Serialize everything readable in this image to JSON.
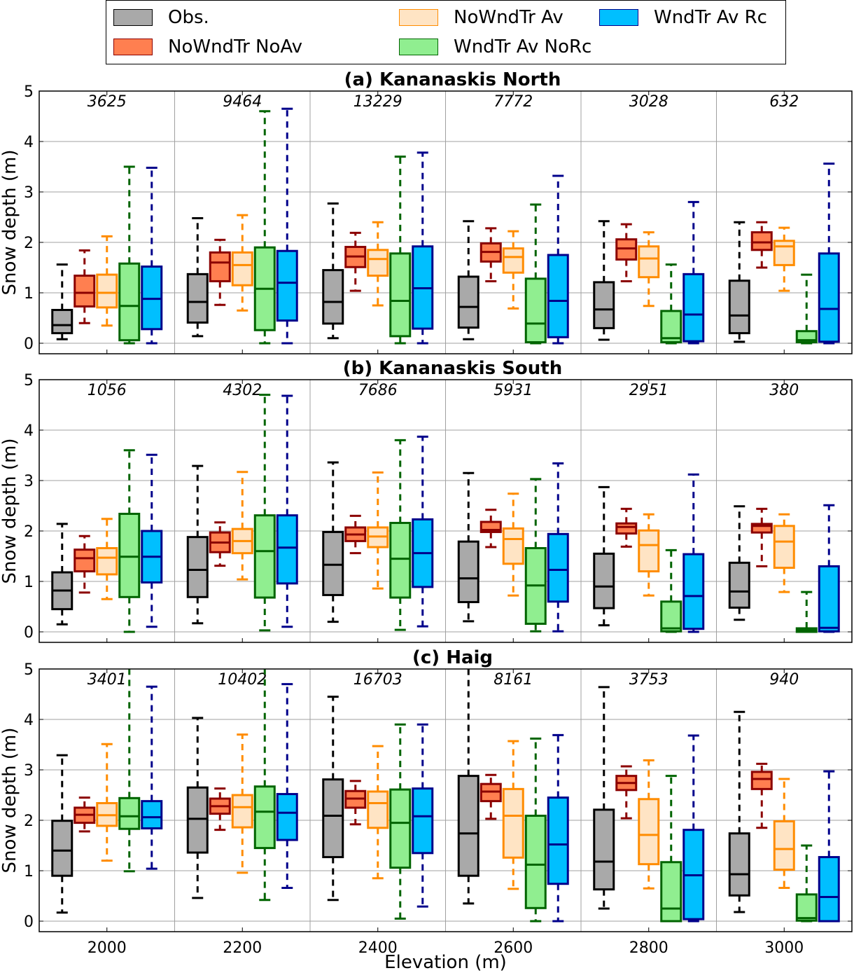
{
  "chart_data": {
    "type": "boxplot",
    "xlabel": "Elevation (m)",
    "ylabel": "Snow depth (m)",
    "ylim": [
      0,
      5
    ],
    "yticks": [
      0,
      1,
      2,
      3,
      4,
      5
    ],
    "categories": [
      "2000",
      "2200",
      "2400",
      "2600",
      "2800",
      "3000"
    ],
    "grid": true,
    "legend_position": "top-center",
    "series": [
      {
        "name": "Obs.",
        "fill": "#a9a9a9",
        "edge": "#000000"
      },
      {
        "name": "NoWndTr NoAv",
        "fill": "#ff7f50",
        "edge": "#8b0000"
      },
      {
        "name": "NoWndTr Av",
        "fill": "#ffe4c4",
        "edge": "#ff8c00"
      },
      {
        "name": "WndTr Av NoRc",
        "fill": "#90ee90",
        "edge": "#006400"
      },
      {
        "name": "WndTr Av Rc",
        "fill": "#00bfff",
        "edge": "#00008b"
      }
    ],
    "legend_order": [
      0,
      2,
      4,
      1,
      3
    ],
    "panels": [
      {
        "title": "(a)  Kananaskis North",
        "counts": [
          "3625",
          "9464",
          "13229",
          "7772",
          "3028",
          "632"
        ],
        "boxes": [
          [
            [
              0.08,
              0.2,
              0.36,
              0.66,
              1.56
            ],
            [
              0.4,
              0.73,
              1.0,
              1.34,
              1.84
            ],
            [
              0.35,
              0.71,
              1.0,
              1.36,
              2.12
            ],
            [
              0.0,
              0.06,
              0.74,
              1.58,
              3.5
            ],
            [
              0.0,
              0.28,
              0.88,
              1.52,
              3.48
            ]
          ],
          [
            [
              0.14,
              0.41,
              0.82,
              1.37,
              2.48
            ],
            [
              0.76,
              1.23,
              1.6,
              1.8,
              2.05
            ],
            [
              0.65,
              1.15,
              1.55,
              1.8,
              2.54
            ],
            [
              0.0,
              0.26,
              1.08,
              1.9,
              4.6
            ],
            [
              0.0,
              0.45,
              1.2,
              1.83,
              4.65
            ]
          ],
          [
            [
              0.1,
              0.39,
              0.82,
              1.45,
              2.77
            ],
            [
              1.04,
              1.51,
              1.72,
              1.91,
              2.19
            ],
            [
              0.75,
              1.34,
              1.67,
              1.85,
              2.4
            ],
            [
              0.0,
              0.14,
              0.84,
              1.78,
              3.7
            ],
            [
              0.0,
              0.29,
              1.09,
              1.92,
              3.78
            ]
          ],
          [
            [
              0.08,
              0.31,
              0.72,
              1.32,
              2.42
            ],
            [
              1.23,
              1.62,
              1.81,
              1.98,
              2.28
            ],
            [
              0.69,
              1.4,
              1.71,
              1.88,
              2.22
            ],
            [
              0.0,
              0.02,
              0.39,
              1.28,
              2.75
            ],
            [
              0.0,
              0.12,
              0.84,
              1.75,
              3.32
            ]
          ],
          [
            [
              0.07,
              0.3,
              0.67,
              1.21,
              2.42
            ],
            [
              1.23,
              1.66,
              1.88,
              2.06,
              2.36
            ],
            [
              0.74,
              1.31,
              1.68,
              1.92,
              2.2
            ],
            [
              0.0,
              0.02,
              0.1,
              0.64,
              1.56
            ],
            [
              0.0,
              0.04,
              0.57,
              1.37,
              2.8
            ]
          ],
          [
            [
              0.03,
              0.2,
              0.55,
              1.24,
              2.4
            ],
            [
              1.5,
              1.85,
              2.0,
              2.2,
              2.4
            ],
            [
              1.04,
              1.55,
              1.92,
              2.03,
              2.29
            ],
            [
              0.0,
              0.02,
              0.06,
              0.24,
              1.36
            ],
            [
              0.0,
              0.03,
              0.68,
              1.78,
              3.56
            ]
          ]
        ]
      },
      {
        "title": "(b) Kananaskis South",
        "counts": [
          "1056",
          "4302",
          "7686",
          "5931",
          "2951",
          "380"
        ],
        "boxes": [
          [
            [
              0.15,
              0.45,
              0.82,
              1.18,
              2.14
            ],
            [
              0.78,
              1.2,
              1.46,
              1.63,
              1.9
            ],
            [
              0.65,
              1.14,
              1.47,
              1.66,
              2.24
            ],
            [
              0.0,
              0.69,
              1.49,
              2.34,
              3.6
            ],
            [
              0.1,
              0.98,
              1.49,
              2.0,
              3.51
            ]
          ],
          [
            [
              0.17,
              0.69,
              1.23,
              1.88,
              3.29
            ],
            [
              1.31,
              1.58,
              1.77,
              1.97,
              2.17
            ],
            [
              1.04,
              1.56,
              1.8,
              2.04,
              3.17
            ],
            [
              0.03,
              0.68,
              1.6,
              2.31,
              4.7
            ],
            [
              0.1,
              0.96,
              1.67,
              2.31,
              4.68
            ]
          ],
          [
            [
              0.2,
              0.73,
              1.33,
              1.98,
              3.36
            ],
            [
              1.56,
              1.8,
              1.93,
              2.07,
              2.3
            ],
            [
              0.86,
              1.68,
              1.89,
              2.07,
              3.16
            ],
            [
              0.04,
              0.68,
              1.45,
              2.16,
              3.8
            ],
            [
              0.11,
              0.89,
              1.56,
              2.23,
              3.87
            ]
          ],
          [
            [
              0.21,
              0.59,
              1.06,
              1.79,
              3.15
            ],
            [
              1.68,
              1.98,
              2.02,
              2.18,
              2.42
            ],
            [
              0.72,
              1.35,
              1.84,
              2.05,
              2.74
            ],
            [
              0.01,
              0.16,
              0.92,
              1.66,
              3.03
            ],
            [
              0.01,
              0.6,
              1.23,
              1.94,
              3.34
            ]
          ],
          [
            [
              0.13,
              0.47,
              0.9,
              1.55,
              2.87
            ],
            [
              1.69,
              1.95,
              2.08,
              2.15,
              2.44
            ],
            [
              0.72,
              1.2,
              1.72,
              2.01,
              2.33
            ],
            [
              0.0,
              0.01,
              0.07,
              0.6,
              1.62
            ],
            [
              0.0,
              0.06,
              0.71,
              1.54,
              3.12
            ]
          ],
          [
            [
              0.24,
              0.48,
              0.8,
              1.37,
              2.49
            ],
            [
              1.3,
              1.97,
              2.1,
              2.14,
              2.44
            ],
            [
              0.79,
              1.27,
              1.79,
              2.1,
              2.33
            ],
            [
              0.0,
              0.0,
              0.03,
              0.07,
              0.79
            ],
            [
              0.0,
              0.01,
              0.08,
              1.3,
              2.51
            ]
          ]
        ]
      },
      {
        "title": "(c) Haig",
        "counts": [
          "3401",
          "10402",
          "16703",
          "8161",
          "3753",
          "940"
        ],
        "boxes": [
          [
            [
              0.17,
              0.9,
              1.4,
              1.99,
              3.29
            ],
            [
              1.78,
              1.95,
              2.11,
              2.25,
              2.45
            ],
            [
              1.2,
              1.89,
              2.1,
              2.34,
              3.51
            ],
            [
              0.99,
              1.83,
              2.08,
              2.44,
              5.0
            ],
            [
              1.04,
              1.84,
              2.06,
              2.38,
              4.65
            ]
          ],
          [
            [
              0.46,
              1.36,
              2.03,
              2.65,
              4.03
            ],
            [
              1.81,
              2.13,
              2.28,
              2.43,
              2.63
            ],
            [
              0.96,
              1.86,
              2.26,
              2.5,
              3.7
            ],
            [
              0.42,
              1.45,
              2.17,
              2.67,
              5.0
            ],
            [
              0.66,
              1.61,
              2.15,
              2.52,
              4.7
            ]
          ],
          [
            [
              0.42,
              1.27,
              2.09,
              2.81,
              4.45
            ],
            [
              1.92,
              2.25,
              2.43,
              2.58,
              2.78
            ],
            [
              0.85,
              1.85,
              2.34,
              2.57,
              3.47
            ],
            [
              0.05,
              1.06,
              1.95,
              2.61,
              3.9
            ],
            [
              0.29,
              1.35,
              2.08,
              2.63,
              3.9
            ]
          ],
          [
            [
              0.35,
              0.9,
              1.74,
              2.88,
              5.0
            ],
            [
              2.03,
              2.38,
              2.57,
              2.72,
              2.9
            ],
            [
              0.64,
              1.26,
              2.09,
              2.62,
              3.57
            ],
            [
              0.0,
              0.26,
              1.12,
              2.09,
              3.62
            ],
            [
              0.0,
              0.74,
              1.52,
              2.45,
              3.69
            ]
          ],
          [
            [
              0.25,
              0.63,
              1.18,
              2.21,
              4.64
            ],
            [
              2.04,
              2.6,
              2.74,
              2.88,
              3.07
            ],
            [
              0.65,
              1.13,
              1.71,
              2.42,
              3.19
            ],
            [
              0.0,
              0.0,
              0.25,
              1.17,
              2.88
            ],
            [
              0.0,
              0.04,
              0.91,
              1.81,
              3.68
            ]
          ],
          [
            [
              0.18,
              0.51,
              0.93,
              1.74,
              4.15
            ],
            [
              1.85,
              2.62,
              2.82,
              2.96,
              3.12
            ],
            [
              0.66,
              1.02,
              1.43,
              1.98,
              2.82
            ],
            [
              0.0,
              0.01,
              0.06,
              0.53,
              1.5
            ],
            [
              0.0,
              0.0,
              0.48,
              1.27,
              2.97
            ]
          ]
        ]
      }
    ]
  }
}
